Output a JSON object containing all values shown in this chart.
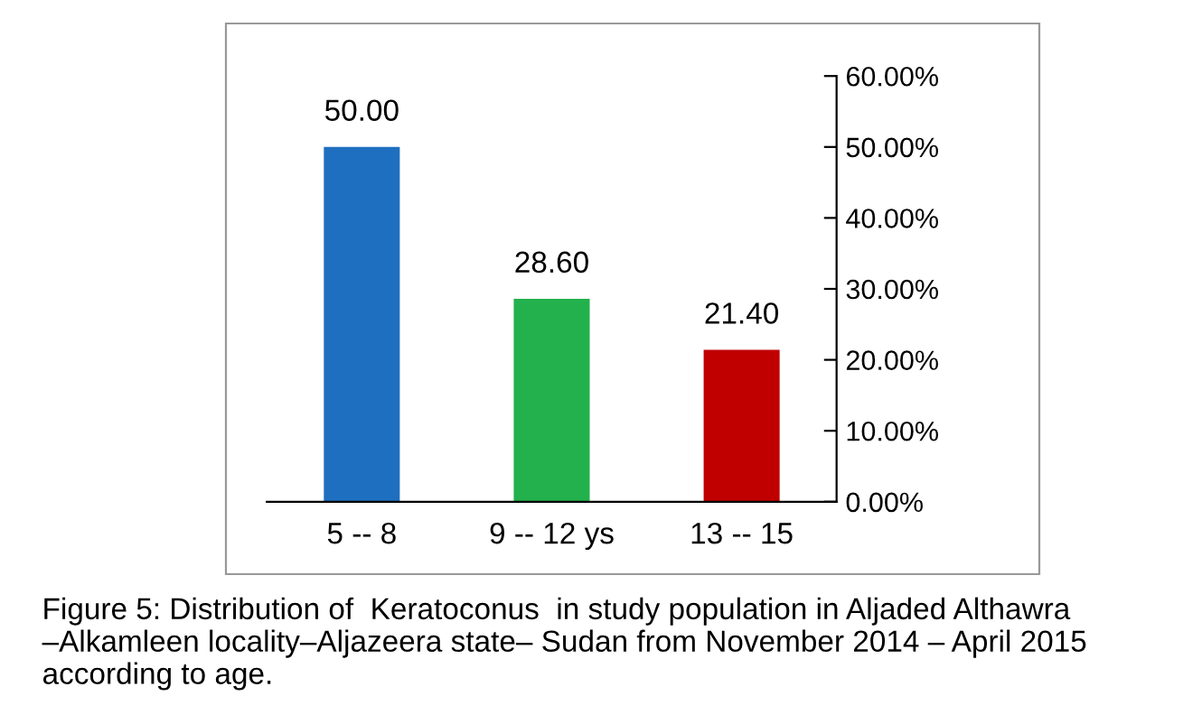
{
  "chart_data": {
    "type": "bar",
    "categories": [
      "5 -- 8",
      "9 -- 12 ys",
      "13 -- 15"
    ],
    "values": [
      50.0,
      28.6,
      21.4
    ],
    "value_labels": [
      "50.00",
      "28.60",
      "21.40"
    ],
    "colors": [
      "#1f6fc0",
      "#22b14c",
      "#c00000"
    ],
    "ylim": [
      0,
      60
    ],
    "yticks": [
      {
        "value": 0,
        "label": "0.00%"
      },
      {
        "value": 10,
        "label": "10.00%"
      },
      {
        "value": 20,
        "label": "20.00%"
      },
      {
        "value": 30,
        "label": "30.00%"
      },
      {
        "value": 40,
        "label": "40.00%"
      },
      {
        "value": 50,
        "label": "50.00%"
      },
      {
        "value": 60,
        "label": "60.00%"
      }
    ],
    "grid": false,
    "legend": false,
    "annotations": [
      "Figure 5: Distribution of  Keratoconus  in study population in Aljaded Althawra –Alkamleen locality–Aljazeera state– Sudan from November 2014 – April 2015 according to age."
    ]
  }
}
